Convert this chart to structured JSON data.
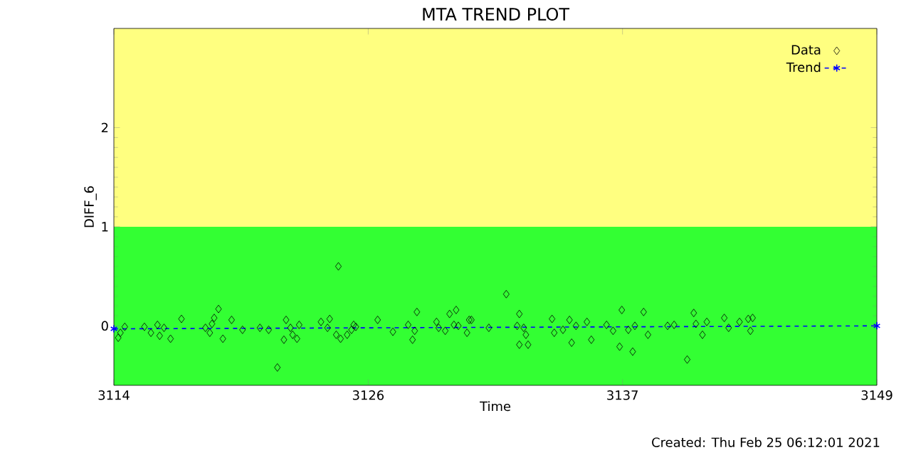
{
  "chart_data": {
    "type": "scatter",
    "title": "MTA TREND PLOT",
    "xlabel": "Time",
    "ylabel": "DIFF_6",
    "annotations": [
      "Created: Thu Feb 25 06:12:01 2021"
    ],
    "xlim": [
      3114,
      3149
    ],
    "ylim": [
      -0.6,
      3
    ],
    "xticks": [
      3114,
      {
        "value": 3125.667,
        "label": "3126"
      },
      {
        "value": 3137.333,
        "label": "3137"
      },
      3149
    ],
    "yticks": [
      0,
      1,
      2
    ],
    "bands": [
      {
        "axis": "y",
        "from": -0.6,
        "to": 1,
        "color": "#33ff33"
      },
      {
        "axis": "y",
        "from": 1,
        "to": 3,
        "color": "#ffff80"
      }
    ],
    "legend": "top right",
    "grid": false,
    "series": [
      {
        "name": "Data",
        "color": "#000000",
        "marker": "diamond",
        "x": [
          3114.2,
          3114.3,
          3114.5,
          3115.4,
          3115.7,
          3116.0,
          3116.1,
          3116.3,
          3116.6,
          3117.1,
          3118.2,
          3118.4,
          3118.5,
          3118.6,
          3118.8,
          3119.0,
          3119.4,
          3119.9,
          3120.7,
          3121.1,
          3121.5,
          3121.9,
          3121.8,
          3122.1,
          3122.2,
          3122.4,
          3122.5,
          3123.5,
          3123.9,
          3123.8,
          3124.2,
          3124.3,
          3124.4,
          3124.7,
          3124.9,
          3125.0,
          3125.1,
          3126.1,
          3126.8,
          3127.5,
          3127.7,
          3127.8,
          3127.9,
          3128.8,
          3128.9,
          3129.2,
          3129.4,
          3129.6,
          3129.7,
          3129.8,
          3130.2,
          3130.4,
          3130.3,
          3131.2,
          3132.0,
          3132.6,
          3132.5,
          3132.6,
          3132.9,
          3133.0,
          3132.8,
          3134.1,
          3134.2,
          3134.6,
          3134.9,
          3135.0,
          3135.2,
          3135.7,
          3135.9,
          3136.6,
          3136.9,
          3137.2,
          3137.3,
          3137.6,
          3137.8,
          3137.9,
          3138.3,
          3138.5,
          3139.4,
          3139.7,
          3140.3,
          3140.6,
          3140.7,
          3141.0,
          3141.2,
          3142.0,
          3142.2,
          3142.7,
          3143.1,
          3143.3,
          3143.2
        ],
        "values": [
          -0.12,
          -0.07,
          -0.01,
          -0.01,
          -0.07,
          0.01,
          -0.1,
          -0.02,
          -0.13,
          0.07,
          -0.02,
          -0.07,
          0.02,
          0.08,
          0.17,
          -0.13,
          0.06,
          -0.04,
          -0.02,
          -0.04,
          -0.42,
          0.06,
          -0.14,
          -0.02,
          -0.09,
          -0.13,
          0.01,
          0.04,
          0.07,
          -0.02,
          -0.09,
          0.6,
          -0.13,
          -0.09,
          -0.04,
          0.01,
          -0.01,
          0.06,
          -0.06,
          0.01,
          -0.14,
          -0.05,
          0.14,
          0.04,
          -0.02,
          -0.05,
          0.12,
          0.01,
          0.16,
          0.0,
          -0.07,
          0.06,
          0.06,
          -0.02,
          0.32,
          0.12,
          0.0,
          -0.19,
          -0.09,
          -0.19,
          -0.02,
          0.07,
          -0.07,
          -0.04,
          0.06,
          -0.17,
          0.0,
          0.04,
          -0.14,
          0.01,
          -0.05,
          -0.21,
          0.16,
          -0.04,
          -0.26,
          0.0,
          0.14,
          -0.09,
          0.0,
          0.01,
          -0.34,
          0.13,
          0.02,
          -0.09,
          0.04,
          0.08,
          -0.02,
          0.04,
          0.07,
          0.08,
          -0.05
        ]
      },
      {
        "name": "Trend",
        "type": "line",
        "color": "#0000ff",
        "marker": "cross",
        "line_style": "dashed",
        "x": [
          3114,
          3149
        ],
        "values": [
          -0.03,
          0.0
        ]
      }
    ]
  }
}
